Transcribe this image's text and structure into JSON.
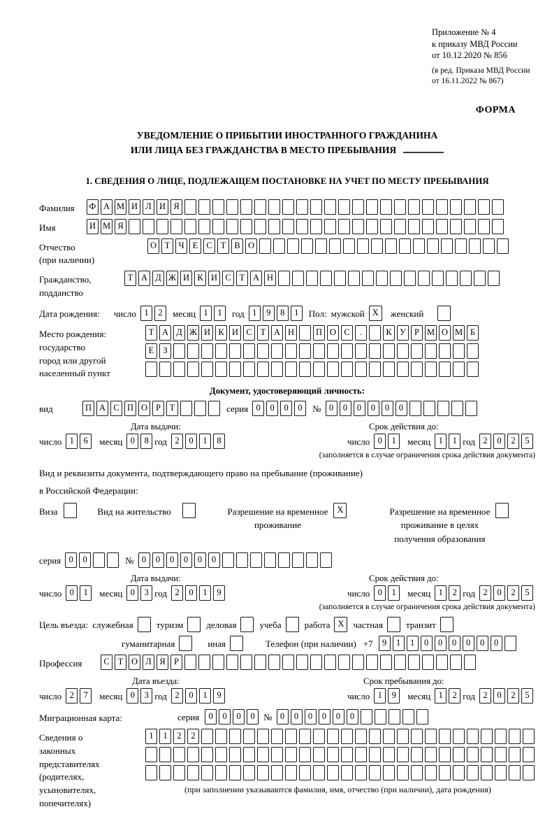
{
  "header": {
    "appendix_lines": [
      "Приложение № 4",
      "к приказу МВД России",
      "от 10.12.2020 № 856"
    ],
    "edition_lines": [
      "(в ред. Приказа МВД России",
      "от 16.11.2022 № 867)"
    ],
    "form_label": "ФОРМА"
  },
  "title": {
    "line1": "УВЕДОМЛЕНИЕ О ПРИБЫТИИ ИНОСТРАННОГО ГРАЖДАНИНА",
    "line2": "ИЛИ ЛИЦА БЕЗ ГРАЖДАНСТВА В МЕСТО ПРЕБЫВАНИЯ"
  },
  "section1_heading": "1. СВЕДЕНИЯ О ЛИЦЕ, ПОДЛЕЖАЩЕМ ПОСТАНОВКЕ НА УЧЕТ ПО МЕСТУ ПРЕБЫВАНИЯ",
  "date_labels": {
    "day": "число",
    "month": "месяц",
    "year": "год"
  },
  "person": {
    "surname": {
      "label": "Фамилия",
      "value": "ФАМИЛИЯ"
    },
    "name": {
      "label": "Имя",
      "value": "ИМЯ"
    },
    "patronymic": {
      "label_line1": "Отчество",
      "label_line2": "(при наличии)",
      "value": "ОТЧЕСТВО"
    },
    "citizenship": {
      "label_line1": "Гражданство,",
      "label_line2": "подданство",
      "value": "ТАДЖИКИСТАН"
    },
    "birth_date": {
      "label": "Дата рождения:",
      "day": "12",
      "month": "11",
      "year": "1981"
    },
    "sex": {
      "label": "Пол:",
      "male_label": "мужской",
      "male": "X",
      "female_label": "женский",
      "female": ""
    },
    "birth_place": {
      "label_line1": "Место рождения:",
      "label_line2": "государство",
      "label_line3": "город или другой",
      "label_line4": "населенный пункт",
      "row1": "ТАДЖИКИСТАН ПОС. КУРМОМБ",
      "row2": "ЕЗ",
      "row3": ""
    }
  },
  "identity_doc": {
    "heading": "Документ, удостоверяющий личность:",
    "kind_label": "вид",
    "kind": "ПАСПОРТ",
    "series_label": "серия",
    "series": "0000",
    "number_label": "№",
    "number": "000000",
    "issue_date": {
      "heading": "Дата выдачи:",
      "day": "16",
      "month": "08",
      "year": "2018"
    },
    "valid_until": {
      "heading": "Срок действия до:",
      "day": "01",
      "month": "11",
      "year": "2025"
    },
    "note": "(заполняется в случае ограничения срока действия документа)"
  },
  "residence_doc": {
    "intro_line1": "Вид и реквизиты документа, подтверждающего право на пребывание (проживание)",
    "intro_line2": "в Российской Федерации:",
    "opt_visa": {
      "label": "Виза",
      "checked": ""
    },
    "opt_residence_permit": {
      "label": "Вид на жительство",
      "checked": ""
    },
    "opt_temp_residence": {
      "label_line1": "Разрешение на временное",
      "label_line2": "проживание",
      "checked": "X"
    },
    "opt_temp_residence_edu": {
      "label_line1": "Разрешение на временное",
      "label_line2": "проживание в целях",
      "label_line3": "получения образования",
      "checked": ""
    },
    "series_label": "серия",
    "series": "00",
    "number_label": "№",
    "number": "000000",
    "issue_date": {
      "heading": "Дата выдачи:",
      "day": "01",
      "month": "03",
      "year": "2019"
    },
    "valid_until": {
      "heading": "Срок действия до:",
      "day": "01",
      "month": "12",
      "year": "2025"
    },
    "note": "(заполняется в случае ограничения срока действия документа)"
  },
  "purpose": {
    "label": "Цель въезда:",
    "opt_official": {
      "label": "служебная",
      "checked": ""
    },
    "opt_tourism": {
      "label": "туризм",
      "checked": ""
    },
    "opt_business": {
      "label": "деловая",
      "checked": ""
    },
    "opt_study": {
      "label": "учеба",
      "checked": ""
    },
    "opt_work": {
      "label": "работа",
      "checked": "X"
    },
    "opt_private": {
      "label": "частная",
      "checked": ""
    },
    "opt_transit": {
      "label": "транзит",
      "checked": ""
    },
    "opt_humanitarian": {
      "label": "гуманитарная",
      "checked": ""
    },
    "opt_other": {
      "label": "иная",
      "checked": ""
    },
    "phone": {
      "label": "Телефон (при наличии)",
      "prefix": "+7",
      "value": "911000000"
    }
  },
  "profession": {
    "label": "Профессия",
    "value": "СТОЛЯР"
  },
  "entry_date": {
    "heading": "Дата въезда:",
    "day": "27",
    "month": "03",
    "year": "2019"
  },
  "stay_until": {
    "heading": "Срок пребывания до:",
    "day": "19",
    "month": "12",
    "year": "2025"
  },
  "migration_card": {
    "label": "Миграционная карта:",
    "series_label": "серия",
    "series": "0000",
    "number_label": "№",
    "number": "000000"
  },
  "representatives": {
    "label_line1": "Сведения о",
    "label_line2": "законных",
    "label_line3": "представителях",
    "label_line4": "(родителях,",
    "label_line5": "усыновителях,",
    "label_line6": "попечителях)",
    "row1": "1122",
    "row2": "",
    "row3": "",
    "note": "(при заполнении указываются фамилия, имя, отчество (при наличии), дата рождения)"
  }
}
